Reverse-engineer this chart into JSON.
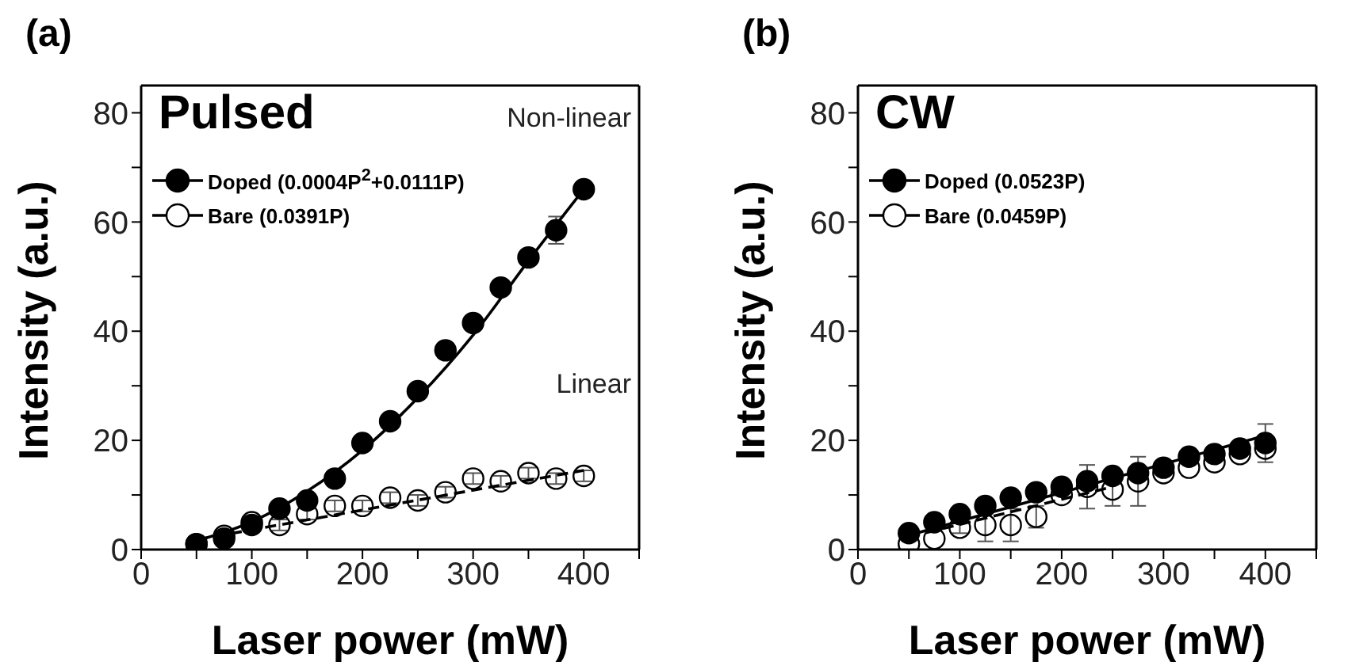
{
  "chart_data": [
    {
      "type": "scatter",
      "title": "(a)",
      "subtitle": "Pulsed",
      "xlabel": "Laser power (mW)",
      "ylabel": "Intensity (a.u.)",
      "annotations": [
        "Non-linear",
        "Linear"
      ],
      "x": [
        50,
        75,
        100,
        125,
        150,
        175,
        200,
        225,
        250,
        275,
        300,
        325,
        350,
        375,
        400
      ],
      "xlim": [
        0,
        450
      ],
      "xticks": [
        0,
        {
          "value": 50,
          "label": null
        },
        100,
        {
          "value": 150,
          "label": null
        },
        200,
        {
          "value": 250,
          "label": null
        },
        300,
        {
          "value": 350,
          "label": null
        },
        400,
        {
          "value": 450,
          "label": null
        }
      ],
      "ylim": [
        0,
        85
      ],
      "yticks": [
        0,
        {
          "value": 10,
          "label": null
        },
        20,
        {
          "value": 30,
          "label": null
        },
        40,
        {
          "value": 50,
          "label": null
        },
        60,
        {
          "value": 70,
          "label": null
        },
        80
      ],
      "legend": "top left",
      "series": [
        {
          "name": "Doped (0.0004P$^{2}$+0.0111P)",
          "color": "#000000",
          "marker": "circle",
          "values": [
            1,
            2,
            4.5,
            7.5,
            9,
            13,
            19.5,
            23.5,
            29,
            36.5,
            41.5,
            48,
            53.5,
            58.5,
            66
          ],
          "errors": [
            null,
            null,
            null,
            null,
            null,
            null,
            null,
            null,
            null,
            null,
            null,
            null,
            null,
            2.5,
            null
          ]
        },
        {
          "name": "Bare (0.0391P)",
          "color": "#000000",
          "marker": "circle",
          "values": [
            1,
            2.5,
            5,
            4.5,
            6.5,
            8,
            8,
            9.5,
            9,
            10.5,
            13,
            12.5,
            14,
            13,
            13.5
          ],
          "errors": [
            1,
            1,
            1,
            1,
            1,
            1,
            1,
            1,
            1,
            1,
            1,
            1,
            1,
            1,
            1
          ]
        },
        {
          "type": "line",
          "color": "#000000",
          "line_style": "solid",
          "x": [
            50,
            100,
            150,
            200,
            250,
            300,
            350,
            400
          ],
          "values": [
            1.6,
            5.1,
            10.7,
            18.2,
            27.8,
            39.3,
            52.9,
            66
          ]
        },
        {
          "type": "line",
          "color": "#000000",
          "line_style": "dashed",
          "x": [
            50,
            400
          ],
          "values": [
            1.8,
            14.5
          ]
        }
      ]
    },
    {
      "type": "scatter",
      "title": "(b)",
      "subtitle": "CW",
      "xlabel": "Laser power (mW)",
      "ylabel": "Intensity (a.u.)",
      "x": [
        50,
        75,
        100,
        125,
        150,
        175,
        200,
        225,
        250,
        275,
        300,
        325,
        350,
        375,
        400
      ],
      "xlim": [
        0,
        450
      ],
      "xticks": [
        0,
        {
          "value": 50,
          "label": null
        },
        100,
        {
          "value": 150,
          "label": null
        },
        200,
        {
          "value": 250,
          "label": null
        },
        300,
        {
          "value": 350,
          "label": null
        },
        400,
        {
          "value": 450,
          "label": null
        }
      ],
      "ylim": [
        0,
        85
      ],
      "yticks": [
        0,
        {
          "value": 10,
          "label": null
        },
        20,
        {
          "value": 30,
          "label": null
        },
        40,
        {
          "value": 50,
          "label": null
        },
        60,
        {
          "value": 70,
          "label": null
        },
        80
      ],
      "legend": "top left",
      "series": [
        {
          "name": "Doped (0.0523P)",
          "color": "#000000",
          "marker": "circle",
          "values": [
            3,
            5,
            6.5,
            8,
            9.5,
            10.5,
            11.5,
            12.5,
            13.5,
            14,
            15,
            17,
            17.5,
            18.5,
            19.5
          ],
          "errors": [
            null,
            null,
            null,
            null,
            null,
            null,
            null,
            null,
            null,
            null,
            null,
            null,
            null,
            null,
            3.5
          ]
        },
        {
          "name": "Bare (0.0459P)",
          "color": "#000000",
          "marker": "circle",
          "values": [
            1,
            2,
            4,
            4.5,
            4.5,
            6,
            10,
            11.5,
            11,
            12.5,
            14,
            15,
            16,
            17.5,
            18.5
          ],
          "errors": [
            null,
            null,
            1,
            3,
            3,
            2,
            null,
            4,
            3,
            4.5,
            null,
            null,
            null,
            null,
            null
          ]
        },
        {
          "type": "line",
          "color": "#000000",
          "line_style": "solid",
          "x": [
            50,
            400
          ],
          "values": [
            2.6,
            20.9
          ]
        },
        {
          "type": "line",
          "color": "#000000",
          "line_style": "dashed",
          "x": [
            50,
            250
          ],
          "values": [
            2.3,
            11.5
          ]
        }
      ]
    }
  ]
}
